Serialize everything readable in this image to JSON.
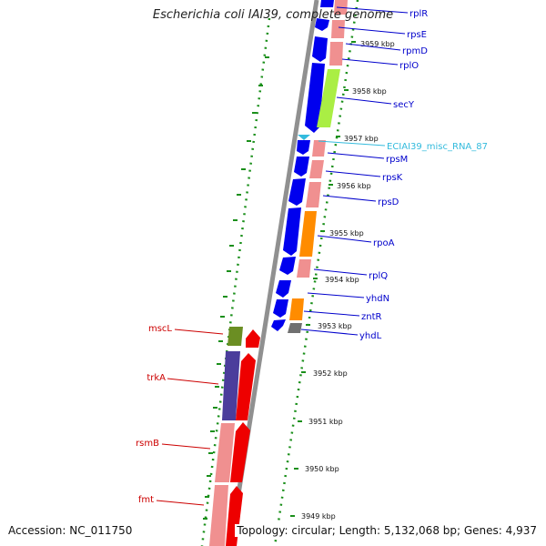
{
  "title": "Escherichia coli IAI39, complete genome",
  "accession": "Accession: NC_011750",
  "topology": "Topology: circular; Length: 5,132,068 bp; Genes: 4,937",
  "colors": {
    "forward_cds": "#0000ee",
    "reverse_cds": "#ee0000",
    "rrna_like": "#f09090",
    "ncrna": "#33bbdd",
    "label_forward": "#0000cc",
    "label_reverse": "#cc0000"
  },
  "ticks": [
    "3959 kbp",
    "3958 kbp",
    "3957 kbp",
    "3956 kbp",
    "3955 kbp",
    "3954 kbp",
    "3953 kbp",
    "3952 kbp",
    "3951 kbp",
    "3950 kbp",
    "3949 kbp"
  ],
  "right_genes": [
    "rplR",
    "rpsE",
    "rpmD",
    "rplO",
    "secY",
    "ECIAI39_misc_RNA_87",
    "rpsM",
    "rpsK",
    "rpsD",
    "rpoA",
    "rplQ",
    "yhdN",
    "zntR",
    "yhdL"
  ],
  "left_genes": [
    "mscL",
    "trkA",
    "rsmB",
    "fmt"
  ]
}
